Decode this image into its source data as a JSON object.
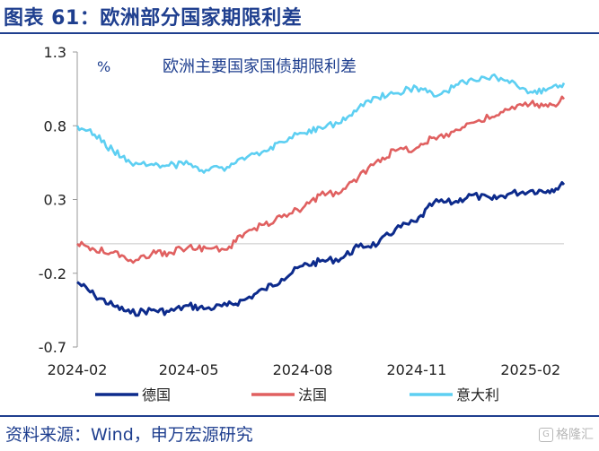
{
  "header": {
    "figure_title": "图表 61：欧洲部分国家期限利差"
  },
  "footer": {
    "source": "资料来源：Wind，申万宏源研究",
    "watermark": "格隆汇"
  },
  "chart_data": {
    "type": "line",
    "title": "欧洲主要国家国债期限利差",
    "unit": "%",
    "x_ticks": [
      "2024-02",
      "2024-05",
      "2024-08",
      "2024-11",
      "2025-02"
    ],
    "x_range": [
      "2024-02-01",
      "2025-02-28"
    ],
    "y_ticks": [
      "1.3",
      "0.8",
      "0.3",
      "-0.2",
      "-0.7"
    ],
    "ylim": [
      -0.7,
      1.3
    ],
    "legend_position": "bottom",
    "series": [
      {
        "name": "德国",
        "color": "#0d2b8c",
        "points": [
          [
            "2024-02-01",
            -0.26
          ],
          [
            "2024-02-15",
            -0.35
          ],
          [
            "2024-03-01",
            -0.42
          ],
          [
            "2024-03-15",
            -0.47
          ],
          [
            "2024-04-01",
            -0.45
          ],
          [
            "2024-04-15",
            -0.46
          ],
          [
            "2024-05-01",
            -0.42
          ],
          [
            "2024-05-15",
            -0.44
          ],
          [
            "2024-06-01",
            -0.42
          ],
          [
            "2024-06-15",
            -0.38
          ],
          [
            "2024-07-01",
            -0.31
          ],
          [
            "2024-07-15",
            -0.24
          ],
          [
            "2024-08-01",
            -0.15
          ],
          [
            "2024-08-15",
            -0.12
          ],
          [
            "2024-09-01",
            -0.1
          ],
          [
            "2024-09-15",
            -0.02
          ],
          [
            "2024-10-01",
            0.0
          ],
          [
            "2024-10-15",
            0.1
          ],
          [
            "2024-11-01",
            0.15
          ],
          [
            "2024-11-15",
            0.28
          ],
          [
            "2024-12-01",
            0.28
          ],
          [
            "2024-12-15",
            0.33
          ],
          [
            "2025-01-01",
            0.3
          ],
          [
            "2025-01-15",
            0.34
          ],
          [
            "2025-02-01",
            0.36
          ],
          [
            "2025-02-15",
            0.36
          ],
          [
            "2025-02-28",
            0.4
          ]
        ]
      },
      {
        "name": "法国",
        "color": "#e06060",
        "points": [
          [
            "2024-02-01",
            0.0
          ],
          [
            "2024-02-15",
            -0.04
          ],
          [
            "2024-03-01",
            -0.06
          ],
          [
            "2024-03-15",
            -0.11
          ],
          [
            "2024-04-01",
            -0.07
          ],
          [
            "2024-04-15",
            -0.06
          ],
          [
            "2024-05-01",
            -0.02
          ],
          [
            "2024-05-15",
            -0.03
          ],
          [
            "2024-06-01",
            -0.04
          ],
          [
            "2024-06-15",
            0.07
          ],
          [
            "2024-07-01",
            0.13
          ],
          [
            "2024-07-15",
            0.18
          ],
          [
            "2024-08-01",
            0.24
          ],
          [
            "2024-08-15",
            0.33
          ],
          [
            "2024-09-01",
            0.35
          ],
          [
            "2024-09-15",
            0.45
          ],
          [
            "2024-10-01",
            0.57
          ],
          [
            "2024-10-15",
            0.63
          ],
          [
            "2024-11-01",
            0.65
          ],
          [
            "2024-11-15",
            0.72
          ],
          [
            "2024-12-01",
            0.76
          ],
          [
            "2024-12-15",
            0.82
          ],
          [
            "2025-01-01",
            0.86
          ],
          [
            "2025-01-15",
            0.91
          ],
          [
            "2025-02-01",
            0.95
          ],
          [
            "2025-02-15",
            0.93
          ],
          [
            "2025-02-28",
            0.98
          ]
        ]
      },
      {
        "name": "意大利",
        "color": "#5dcff2",
        "points": [
          [
            "2024-02-01",
            0.8
          ],
          [
            "2024-02-15",
            0.74
          ],
          [
            "2024-03-01",
            0.63
          ],
          [
            "2024-03-15",
            0.55
          ],
          [
            "2024-04-01",
            0.54
          ],
          [
            "2024-04-15",
            0.53
          ],
          [
            "2024-05-01",
            0.54
          ],
          [
            "2024-05-15",
            0.5
          ],
          [
            "2024-06-01",
            0.52
          ],
          [
            "2024-06-15",
            0.57
          ],
          [
            "2024-07-01",
            0.63
          ],
          [
            "2024-07-15",
            0.69
          ],
          [
            "2024-08-01",
            0.75
          ],
          [
            "2024-08-15",
            0.79
          ],
          [
            "2024-09-01",
            0.82
          ],
          [
            "2024-09-15",
            0.92
          ],
          [
            "2024-10-01",
            0.99
          ],
          [
            "2024-10-15",
            1.02
          ],
          [
            "2024-11-01",
            1.06
          ],
          [
            "2024-11-15",
            1.0
          ],
          [
            "2024-12-01",
            1.06
          ],
          [
            "2024-12-15",
            1.12
          ],
          [
            "2025-01-01",
            1.14
          ],
          [
            "2025-01-15",
            1.09
          ],
          [
            "2025-02-01",
            1.03
          ],
          [
            "2025-02-15",
            1.05
          ],
          [
            "2025-02-28",
            1.09
          ]
        ]
      }
    ]
  }
}
